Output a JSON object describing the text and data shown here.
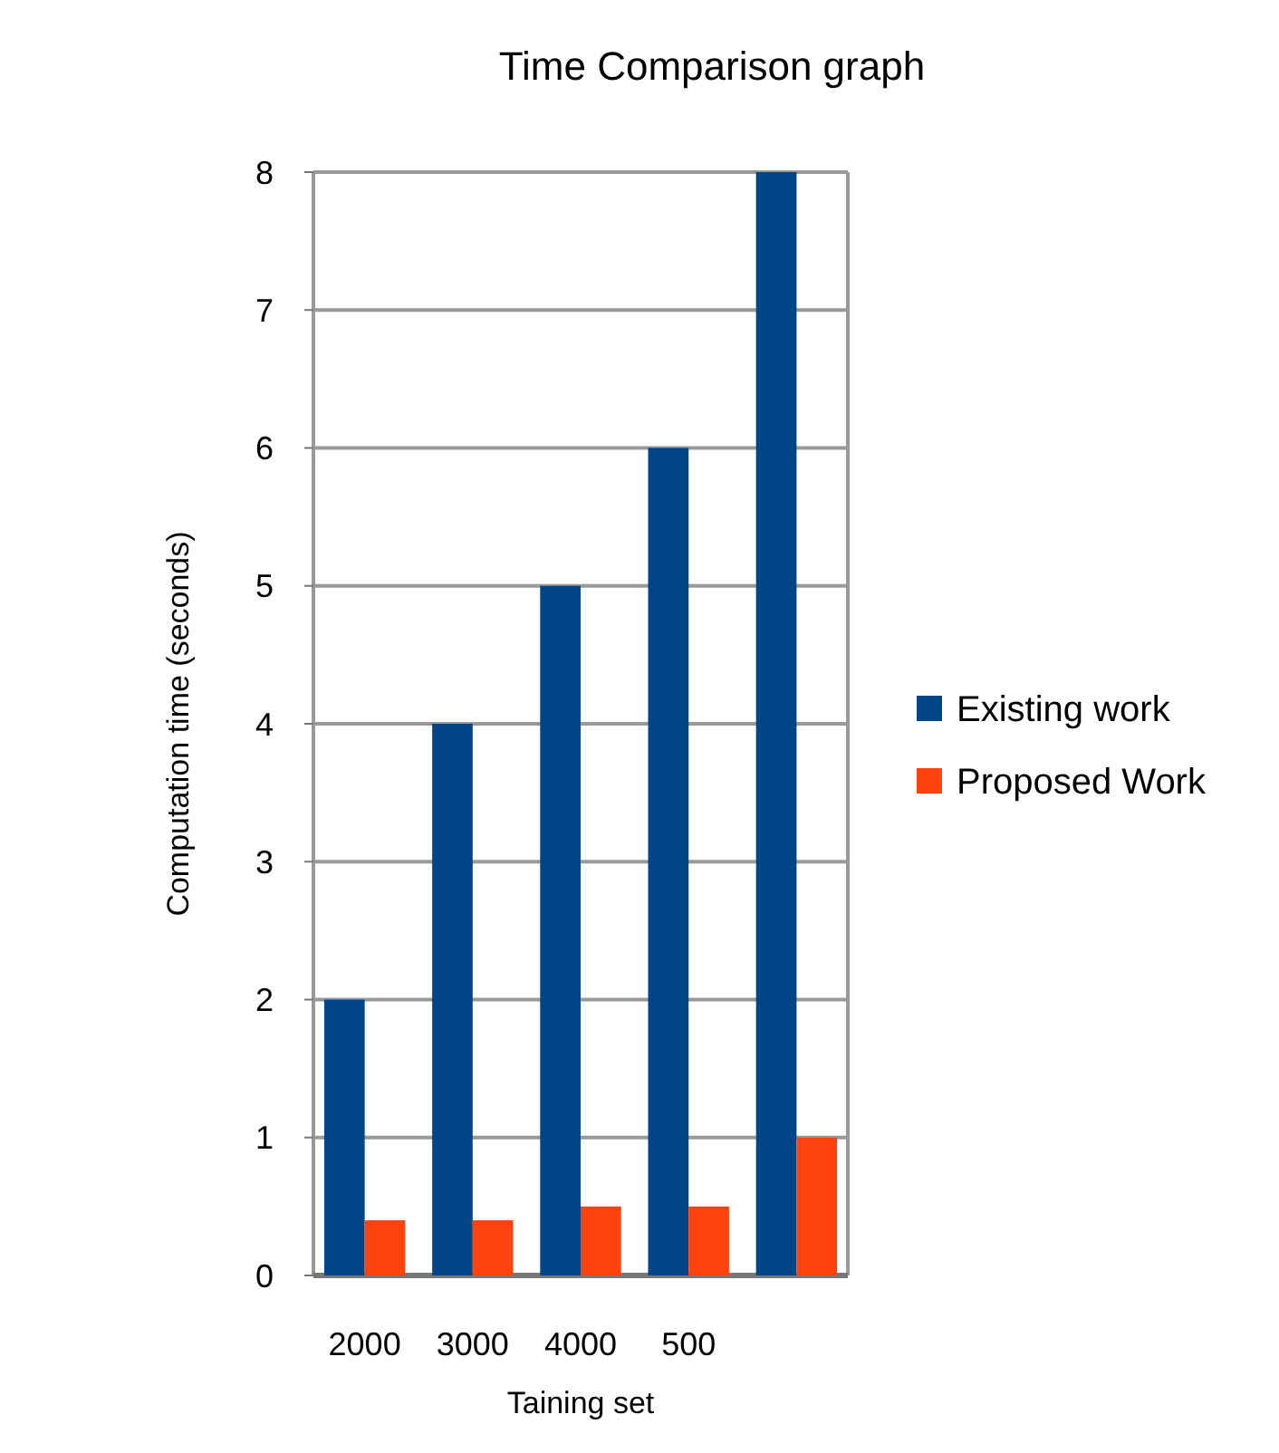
{
  "chart_data": {
    "type": "bar",
    "title": "Time Comparison graph",
    "xlabel": "Taining set",
    "ylabel": "Computation time (seconds)",
    "categories": [
      "2000",
      "3000",
      "4000",
      "500",
      null
    ],
    "series": [
      {
        "name": "Existing work",
        "color": "#004586",
        "values": [
          2,
          4,
          5,
          6,
          8
        ]
      },
      {
        "name": "Proposed Work",
        "color": "#ff420e",
        "values": [
          0.4,
          0.4,
          0.5,
          0.5,
          1
        ]
      }
    ],
    "ylim": [
      0,
      8
    ],
    "yticks": [
      0,
      1,
      2,
      3,
      4,
      5,
      6,
      7,
      8
    ],
    "grid": "y",
    "legend": "right"
  }
}
